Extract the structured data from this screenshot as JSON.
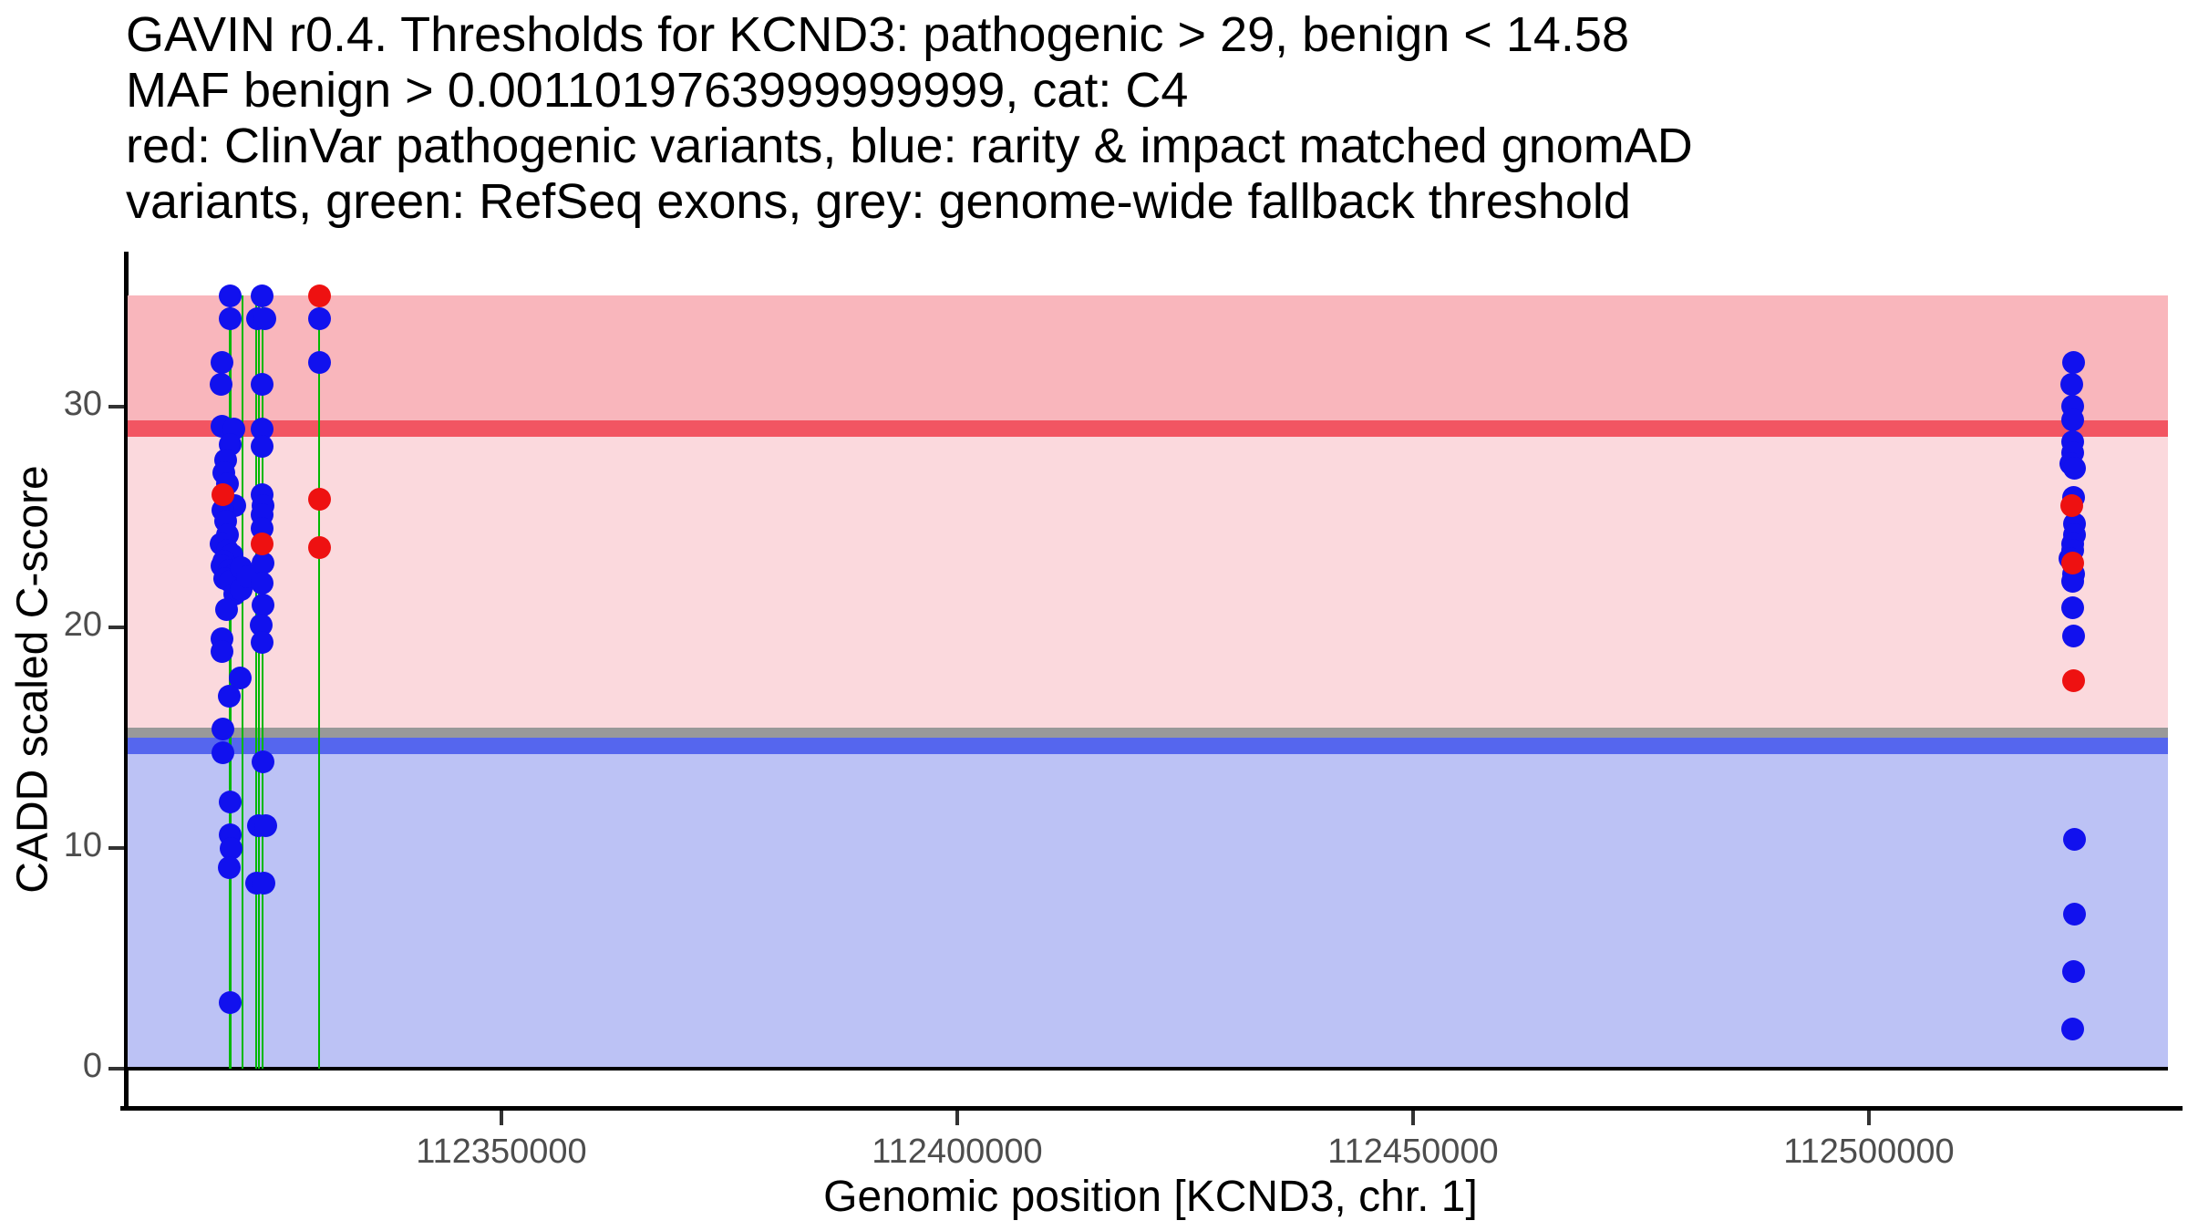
{
  "title_lines": [
    "GAVIN r0.4. Thresholds for KCND3: pathogenic > 29, benign < 14.58",
    "MAF benign > 0.0011019763999999999, cat: C4",
    "red: ClinVar pathogenic variants, blue: rarity & impact matched gnomAD",
    "variants, green: RefSeq exons, grey: genome-wide fallback threshold"
  ],
  "chart_data": {
    "type": "scatter",
    "title": "GAVIN r0.4. Thresholds for KCND3: pathogenic > 29, benign < 14.58 MAF benign > 0.0011019763999999999, cat: C4",
    "xlabel": "Genomic position [KCND3, chr. 1]",
    "ylabel": "CADD scaled C-score",
    "x_ticks": [
      112350000,
      112400000,
      112450000,
      112500000
    ],
    "y_ticks": [
      0,
      10,
      20,
      30
    ],
    "xlim_bp": [
      112309000,
      112533500
    ],
    "ylim": [
      -1.694,
      36.942
    ],
    "shade_x_end_bp": 112532800,
    "shade_y_range": [
      0,
      35.06
    ],
    "thresholds": {
      "pathogenic_gt": 29,
      "benign_lt": 14.58,
      "maf_benign_gt": 0.0011019763999999999,
      "genome_wide_fallback": 15,
      "category": "C4"
    },
    "colors": {
      "blue_point": "#1111ee",
      "red_point": "#ee1111",
      "green_exon": "#00b800",
      "benign_zone": "#bcc2f5",
      "intermediate_zone": "#fbd9dd",
      "pathogenic_zone": "#f9b6bc",
      "pathogenic_band": "#f25562",
      "fallback_band": "#999999",
      "benign_band": "#5566ee"
    },
    "zones": [
      {
        "name": "benign-region",
        "from": 0,
        "to": 14.58,
        "colorKey": "benign_zone"
      },
      {
        "name": "intermediate-region",
        "from": 14.58,
        "to": 29,
        "colorKey": "intermediate_zone"
      },
      {
        "name": "pathogenic-region",
        "from": 29,
        "to": 35.06,
        "colorKey": "pathogenic_zone"
      }
    ],
    "threshold_bands": [
      {
        "name": "fallback-threshold-band",
        "from": 15.0,
        "to": 15.46,
        "colorKey": "fallback_band"
      },
      {
        "name": "benign-threshold-band",
        "from": 14.26,
        "to": 15.0,
        "colorKey": "benign_band"
      },
      {
        "name": "pathogenic-threshold-band",
        "from": 28.63,
        "to": 29.37,
        "colorKey": "pathogenic_band"
      }
    ],
    "exons_bp": [
      {
        "pos": 112320200,
        "w": 3
      },
      {
        "pos": 112321600,
        "w": 1.5
      },
      {
        "pos": 112323100,
        "w": 1.5
      },
      {
        "pos": 112323400,
        "w": 1.5
      },
      {
        "pos": 112323800,
        "w": 2
      },
      {
        "pos": 112330000,
        "w": 2.5
      }
    ],
    "points": [
      {
        "bp": 112320200,
        "cadd": 35.0,
        "c": "blue"
      },
      {
        "bp": 112320200,
        "cadd": 34.0,
        "c": "blue"
      },
      {
        "bp": 112319300,
        "cadd": 32.0,
        "c": "blue"
      },
      {
        "bp": 112319200,
        "cadd": 31.0,
        "c": "blue"
      },
      {
        "bp": 112319300,
        "cadd": 29.1,
        "c": "blue"
      },
      {
        "bp": 112320600,
        "cadd": 29.0,
        "c": "blue"
      },
      {
        "bp": 112320200,
        "cadd": 28.3,
        "c": "blue"
      },
      {
        "bp": 112319700,
        "cadd": 27.6,
        "c": "blue"
      },
      {
        "bp": 112319500,
        "cadd": 27.0,
        "c": "blue"
      },
      {
        "bp": 112319900,
        "cadd": 26.5,
        "c": "blue"
      },
      {
        "bp": 112320700,
        "cadd": 25.5,
        "c": "blue"
      },
      {
        "bp": 112319400,
        "cadd": 25.3,
        "c": "blue"
      },
      {
        "bp": 112319700,
        "cadd": 24.8,
        "c": "blue"
      },
      {
        "bp": 112319900,
        "cadd": 24.2,
        "c": "blue"
      },
      {
        "bp": 112319200,
        "cadd": 23.8,
        "c": "blue"
      },
      {
        "bp": 112319900,
        "cadd": 23.5,
        "c": "blue"
      },
      {
        "bp": 112320400,
        "cadd": 23.3,
        "c": "blue"
      },
      {
        "bp": 112319500,
        "cadd": 23.0,
        "c": "blue"
      },
      {
        "bp": 112319300,
        "cadd": 22.8,
        "c": "blue"
      },
      {
        "bp": 112320100,
        "cadd": 22.6,
        "c": "blue"
      },
      {
        "bp": 112320800,
        "cadd": 22.4,
        "c": "blue"
      },
      {
        "bp": 112319600,
        "cadd": 22.2,
        "c": "blue"
      },
      {
        "bp": 112320200,
        "cadd": 22.1,
        "c": "blue"
      },
      {
        "bp": 112320700,
        "cadd": 21.5,
        "c": "blue"
      },
      {
        "bp": 112319800,
        "cadd": 20.8,
        "c": "blue"
      },
      {
        "bp": 112319300,
        "cadd": 19.5,
        "c": "blue"
      },
      {
        "bp": 112319300,
        "cadd": 18.9,
        "c": "blue"
      },
      {
        "bp": 112321300,
        "cadd": 17.7,
        "c": "blue"
      },
      {
        "bp": 112320100,
        "cadd": 16.9,
        "c": "blue"
      },
      {
        "bp": 112319400,
        "cadd": 15.4,
        "c": "blue"
      },
      {
        "bp": 112319400,
        "cadd": 14.3,
        "c": "blue"
      },
      {
        "bp": 112320200,
        "cadd": 12.1,
        "c": "blue"
      },
      {
        "bp": 112320200,
        "cadd": 10.6,
        "c": "blue"
      },
      {
        "bp": 112320300,
        "cadd": 10.0,
        "c": "blue"
      },
      {
        "bp": 112320100,
        "cadd": 9.1,
        "c": "blue"
      },
      {
        "bp": 112320200,
        "cadd": 3.0,
        "c": "blue"
      },
      {
        "bp": 112321400,
        "cadd": 22.7,
        "c": "blue"
      },
      {
        "bp": 112321400,
        "cadd": 21.7,
        "c": "blue"
      },
      {
        "bp": 112322100,
        "cadd": 22.3,
        "c": "blue"
      },
      {
        "bp": 112323700,
        "cadd": 35.0,
        "c": "blue"
      },
      {
        "bp": 112323200,
        "cadd": 34.0,
        "c": "blue"
      },
      {
        "bp": 112324000,
        "cadd": 34.0,
        "c": "blue"
      },
      {
        "bp": 112323700,
        "cadd": 31.0,
        "c": "blue"
      },
      {
        "bp": 112323700,
        "cadd": 29.0,
        "c": "blue"
      },
      {
        "bp": 112323700,
        "cadd": 28.2,
        "c": "blue"
      },
      {
        "bp": 112323700,
        "cadd": 26.0,
        "c": "blue"
      },
      {
        "bp": 112323800,
        "cadd": 25.5,
        "c": "blue"
      },
      {
        "bp": 112323700,
        "cadd": 25.1,
        "c": "blue"
      },
      {
        "bp": 112323700,
        "cadd": 24.5,
        "c": "blue"
      },
      {
        "bp": 112323800,
        "cadd": 22.9,
        "c": "blue"
      },
      {
        "bp": 112323700,
        "cadd": 22.0,
        "c": "blue"
      },
      {
        "bp": 112323800,
        "cadd": 21.0,
        "c": "blue"
      },
      {
        "bp": 112323600,
        "cadd": 20.1,
        "c": "blue"
      },
      {
        "bp": 112323700,
        "cadd": 19.3,
        "c": "blue"
      },
      {
        "bp": 112323800,
        "cadd": 13.9,
        "c": "blue"
      },
      {
        "bp": 112323300,
        "cadd": 11.0,
        "c": "blue"
      },
      {
        "bp": 112324100,
        "cadd": 11.0,
        "c": "blue"
      },
      {
        "bp": 112323100,
        "cadd": 8.4,
        "c": "blue"
      },
      {
        "bp": 112323900,
        "cadd": 8.4,
        "c": "blue"
      },
      {
        "bp": 112330000,
        "cadd": 34.0,
        "c": "blue"
      },
      {
        "bp": 112330000,
        "cadd": 32.0,
        "c": "blue"
      },
      {
        "bp": 112522400,
        "cadd": 32.0,
        "c": "blue"
      },
      {
        "bp": 112522200,
        "cadd": 31.0,
        "c": "blue"
      },
      {
        "bp": 112522300,
        "cadd": 30.0,
        "c": "blue"
      },
      {
        "bp": 112522300,
        "cadd": 29.4,
        "c": "blue"
      },
      {
        "bp": 112522300,
        "cadd": 28.4,
        "c": "blue"
      },
      {
        "bp": 112522300,
        "cadd": 27.9,
        "c": "blue"
      },
      {
        "bp": 112522100,
        "cadd": 27.4,
        "c": "blue"
      },
      {
        "bp": 112522500,
        "cadd": 27.2,
        "c": "blue"
      },
      {
        "bp": 112522400,
        "cadd": 25.9,
        "c": "blue"
      },
      {
        "bp": 112522500,
        "cadd": 24.7,
        "c": "blue"
      },
      {
        "bp": 112522500,
        "cadd": 24.2,
        "c": "blue"
      },
      {
        "bp": 112522300,
        "cadd": 23.8,
        "c": "blue"
      },
      {
        "bp": 112522300,
        "cadd": 23.5,
        "c": "blue"
      },
      {
        "bp": 112522000,
        "cadd": 23.1,
        "c": "blue"
      },
      {
        "bp": 112522400,
        "cadd": 22.4,
        "c": "blue"
      },
      {
        "bp": 112522300,
        "cadd": 22.1,
        "c": "blue"
      },
      {
        "bp": 112522300,
        "cadd": 20.9,
        "c": "blue"
      },
      {
        "bp": 112522400,
        "cadd": 19.6,
        "c": "blue"
      },
      {
        "bp": 112522500,
        "cadd": 10.4,
        "c": "blue"
      },
      {
        "bp": 112522500,
        "cadd": 7.0,
        "c": "blue"
      },
      {
        "bp": 112522400,
        "cadd": 4.4,
        "c": "blue"
      },
      {
        "bp": 112522300,
        "cadd": 1.8,
        "c": "blue"
      },
      {
        "bp": 112319400,
        "cadd": 26.0,
        "c": "red"
      },
      {
        "bp": 112323700,
        "cadd": 23.8,
        "c": "red"
      },
      {
        "bp": 112330000,
        "cadd": 35.0,
        "c": "red"
      },
      {
        "bp": 112330000,
        "cadd": 25.8,
        "c": "red"
      },
      {
        "bp": 112330000,
        "cadd": 23.6,
        "c": "red"
      },
      {
        "bp": 112522200,
        "cadd": 25.5,
        "c": "red"
      },
      {
        "bp": 112522300,
        "cadd": 22.9,
        "c": "red"
      },
      {
        "bp": 112522400,
        "cadd": 17.6,
        "c": "red"
      }
    ]
  }
}
